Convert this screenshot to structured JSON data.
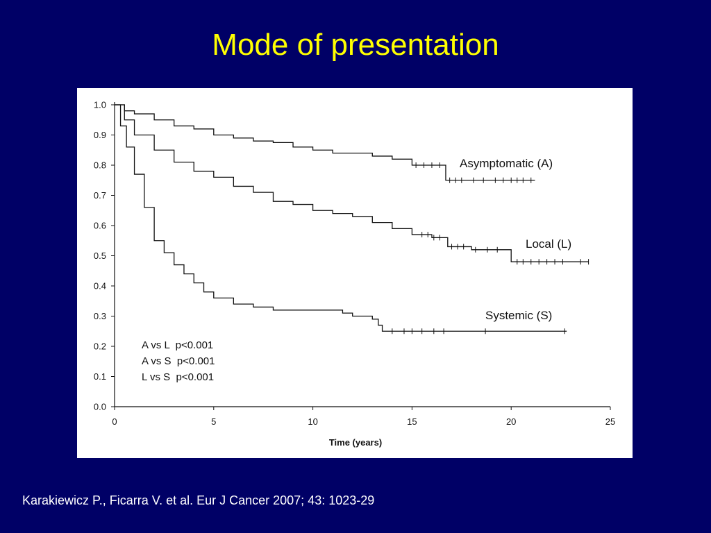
{
  "slide": {
    "title": "Mode of presentation",
    "citation": "Karakiewicz P., Ficarra V. et al. Eur J Cancer 2007; 43: 1023-29"
  },
  "colors": {
    "background": "#000066",
    "title": "#ffff00",
    "citation": "#ffffff",
    "panel": "#ffffff",
    "curves": "#111111"
  },
  "chart_data": {
    "type": "line",
    "title": "",
    "xlabel": "Time (years)",
    "ylabel": "",
    "xlim": [
      0,
      25
    ],
    "ylim": [
      0,
      1.0
    ],
    "x_ticks": [
      0,
      5,
      10,
      15,
      20,
      25
    ],
    "y_ticks": [
      "0.0",
      "0.1",
      "0.2",
      "0.3",
      "0.4",
      "0.5",
      "0.6",
      "0.7",
      "0.8",
      "0.9",
      "1.0"
    ],
    "grid": false,
    "step": true,
    "series": [
      {
        "name": "Asymptomatic (A)",
        "points": [
          [
            0,
            1.0
          ],
          [
            0.5,
            0.98
          ],
          [
            1,
            0.97
          ],
          [
            2,
            0.95
          ],
          [
            3,
            0.93
          ],
          [
            4,
            0.92
          ],
          [
            5,
            0.9
          ],
          [
            6,
            0.89
          ],
          [
            7,
            0.88
          ],
          [
            8,
            0.875
          ],
          [
            9,
            0.86
          ],
          [
            10,
            0.85
          ],
          [
            11,
            0.84
          ],
          [
            12,
            0.84
          ],
          [
            13,
            0.83
          ],
          [
            14,
            0.82
          ],
          [
            15,
            0.8
          ],
          [
            16.7,
            0.8
          ],
          [
            16.7,
            0.75
          ],
          [
            21.2,
            0.75
          ]
        ],
        "censor_x": [
          15.2,
          15.6,
          16,
          16.4,
          16.9,
          17.2,
          17.5,
          18.1,
          18.6,
          19.2,
          19.6,
          20,
          20.3,
          20.6,
          21
        ]
      },
      {
        "name": "Local (L)",
        "points": [
          [
            0,
            1.0
          ],
          [
            0.5,
            0.95
          ],
          [
            1,
            0.9
          ],
          [
            2,
            0.85
          ],
          [
            3,
            0.81
          ],
          [
            4,
            0.78
          ],
          [
            5,
            0.76
          ],
          [
            6,
            0.73
          ],
          [
            7,
            0.71
          ],
          [
            8,
            0.68
          ],
          [
            9,
            0.67
          ],
          [
            10,
            0.65
          ],
          [
            11,
            0.64
          ],
          [
            12,
            0.63
          ],
          [
            13,
            0.61
          ],
          [
            14,
            0.59
          ],
          [
            15,
            0.57
          ],
          [
            16,
            0.56
          ],
          [
            16.8,
            0.53
          ],
          [
            18,
            0.52
          ],
          [
            20,
            0.52
          ],
          [
            20,
            0.48
          ],
          [
            23.9,
            0.48
          ]
        ],
        "censor_x": [
          15.5,
          15.8,
          16.1,
          16.4,
          17,
          17.3,
          17.6,
          18.2,
          18.8,
          19.3,
          20.3,
          20.6,
          21,
          21.4,
          21.8,
          22.2,
          22.6,
          23.5,
          23.9
        ]
      },
      {
        "name": "Systemic (S)",
        "points": [
          [
            0,
            1.0
          ],
          [
            0.3,
            0.93
          ],
          [
            0.6,
            0.86
          ],
          [
            1,
            0.77
          ],
          [
            1.5,
            0.66
          ],
          [
            2,
            0.55
          ],
          [
            2.5,
            0.51
          ],
          [
            3,
            0.47
          ],
          [
            3.5,
            0.44
          ],
          [
            4,
            0.41
          ],
          [
            4.5,
            0.38
          ],
          [
            5,
            0.36
          ],
          [
            6,
            0.34
          ],
          [
            7,
            0.33
          ],
          [
            8,
            0.32
          ],
          [
            11,
            0.32
          ],
          [
            11.5,
            0.31
          ],
          [
            12,
            0.3
          ],
          [
            13,
            0.29
          ],
          [
            13.3,
            0.29
          ],
          [
            13.3,
            0.27
          ],
          [
            13.5,
            0.25
          ],
          [
            22.8,
            0.25
          ]
        ],
        "censor_x": [
          14,
          14.6,
          15,
          15.5,
          16.1,
          16.6,
          18.7,
          22.7
        ]
      }
    ],
    "annotations": [
      "A vs L  p<0.001",
      "A vs S  p<0.001",
      "L vs S  p<0.001"
    ]
  }
}
